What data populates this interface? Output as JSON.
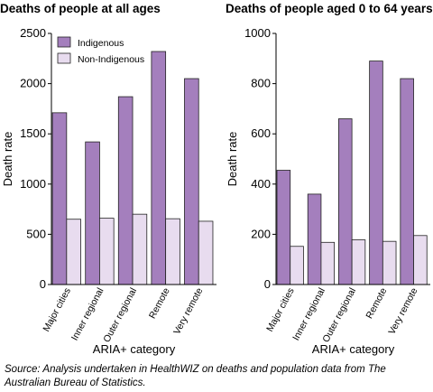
{
  "colors": {
    "indigenous": "#a47fbd",
    "non_indigenous": "#e8dcef",
    "bar_stroke": "#222222",
    "axis": "#000000"
  },
  "source": "Source: Analysis undertaken in HealthWIZ on deaths and population data from The Australian Bureau of Statistics.",
  "chart_data": [
    {
      "type": "bar",
      "title": "Deaths of people at all ages",
      "xlabel": "ARIA+ category",
      "ylabel": "Death rate",
      "categories": [
        "Major cities",
        "Inner regional",
        "Outer regional",
        "Remote",
        "Very remote"
      ],
      "ylim": [
        0,
        2500
      ],
      "yticks": [
        0,
        500,
        1000,
        1500,
        2000,
        2500
      ],
      "grid": false,
      "legend": "top-left",
      "series": [
        {
          "name": "Indigenous",
          "values": [
            1710,
            1420,
            1870,
            2320,
            2050
          ]
        },
        {
          "name": "Non-Indigenous",
          "values": [
            650,
            660,
            700,
            655,
            630
          ]
        }
      ]
    },
    {
      "type": "bar",
      "title": "Deaths of people aged 0 to 64 years",
      "xlabel": "ARIA+ category",
      "ylabel": "Death rate",
      "categories": [
        "Major cities",
        "Inner regional",
        "Outer regional",
        "Remote",
        "Very remote"
      ],
      "ylim": [
        0,
        1000
      ],
      "yticks": [
        0,
        200,
        400,
        600,
        800,
        1000
      ],
      "grid": false,
      "legend": "none",
      "series": [
        {
          "name": "Indigenous",
          "values": [
            455,
            360,
            660,
            890,
            820
          ]
        },
        {
          "name": "Non-Indigenous",
          "values": [
            152,
            168,
            178,
            172,
            195
          ]
        }
      ]
    }
  ]
}
